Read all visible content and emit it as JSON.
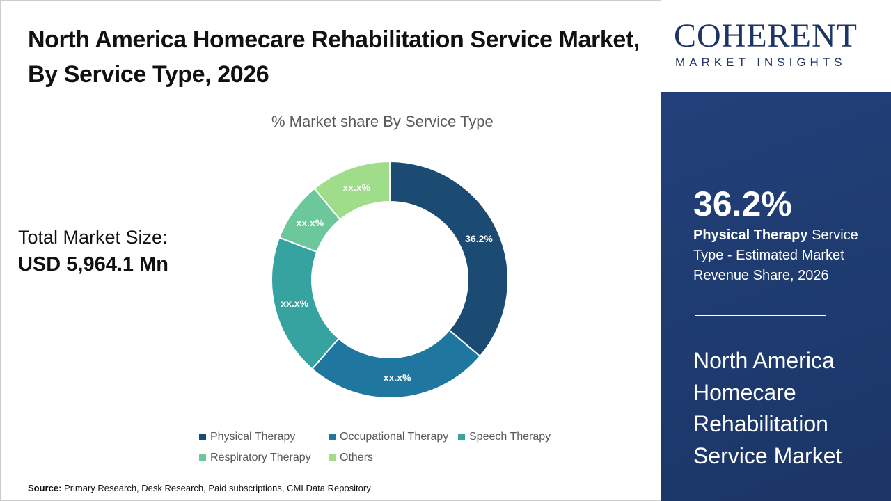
{
  "title": "North America Homecare Rehabilitation Service Market, By Service Type, 2026",
  "total_market": {
    "label": "Total Market Size:",
    "value": "USD 5,964.1 Mn"
  },
  "source": {
    "label": "Source:",
    "text": " Primary Research, Desk Research, Paid subscriptions, CMI Data Repository"
  },
  "logo": {
    "main": "COHERENT",
    "sub": "MARKET INSIGHTS"
  },
  "sidebar": {
    "percent": "36.2%",
    "highlight": "Physical Therapy",
    "desc": " Service Type - Estimated Market Revenue Share, 2026",
    "market": "North America Homecare Rehabilitation Service Market"
  },
  "chart_data": {
    "type": "pie",
    "donut": true,
    "title": "% Market share By Service Type",
    "legend": "bottom",
    "categories": [
      "Physical Therapy",
      "Occupational Therapy",
      "Speech Therapy",
      "Respiratory Therapy",
      "Others"
    ],
    "values": [
      36.2,
      25.2,
      19.4,
      8.2,
      11.0
    ],
    "labels": [
      "36.2%",
      "xx.x%",
      "xx.x%",
      "xx.x%",
      "xx.x%"
    ],
    "colors": [
      "#1b4a72",
      "#1f77a0",
      "#36a3a0",
      "#6cc79a",
      "#a0dd8a"
    ]
  }
}
